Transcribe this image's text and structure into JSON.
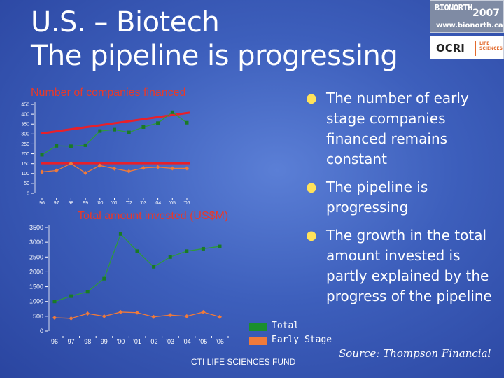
{
  "slide": {
    "title_line1": "U.S. – Biotech",
    "title_line2": "The pipeline is progressing"
  },
  "logos": {
    "bionorth_name": "BIONORTH",
    "bionorth_year": "2007",
    "bionorth_url": "www.bionorth.ca",
    "ocri_name": "OCRI",
    "ocri_sub": "LIFE SCIENCES"
  },
  "bullets": [
    "The number of early stage companies financed remains constant",
    "The pipeline is progressing",
    "The growth in the total amount invested is partly explained by the progress of the pipeline"
  ],
  "legend": [
    {
      "label": "Total",
      "color": "#1a8f2c"
    },
    {
      "label": "Early Stage",
      "color": "#f07a3a"
    }
  ],
  "footer": {
    "fund": "CTI LIFE SCIENCES FUND",
    "source": "Source: Thompson Financial"
  },
  "colors": {
    "total_series": "#2e9a3a",
    "early_series": "#f07a3a",
    "trend_line": "#e8202a",
    "title_red": "#e8392a"
  },
  "chart_data": [
    {
      "type": "line",
      "title": "Number of companies financed",
      "categories": [
        "96",
        "97",
        "98",
        "99",
        "'00",
        "'01",
        "'02",
        "'03",
        "'04",
        "'05",
        "'06"
      ],
      "yticks": [
        "0",
        "50",
        "100",
        "150",
        "200",
        "250",
        "300",
        "350",
        "400",
        "450"
      ],
      "ylim": [
        0,
        450
      ],
      "series": [
        {
          "name": "Total",
          "values": [
            195,
            240,
            238,
            243,
            315,
            322,
            308,
            335,
            355,
            410,
            357
          ]
        },
        {
          "name": "Early Stage",
          "values": [
            108,
            115,
            150,
            103,
            140,
            125,
            111,
            128,
            132,
            126,
            126
          ]
        }
      ],
      "trendlines": [
        {
          "series": "Total",
          "start": 302,
          "end": 408
        },
        {
          "series": "Early Stage",
          "start": 152,
          "end": 152
        }
      ]
    },
    {
      "type": "line",
      "title": "Total amount invested (US$M)",
      "categories": [
        "96",
        "97",
        "98",
        "99",
        "'00",
        "'01",
        "'02",
        "'03",
        "'04",
        "'05",
        "'06"
      ],
      "yticks": [
        "0",
        "500",
        "1000",
        "1500",
        "2000",
        "2500",
        "3000",
        "3500"
      ],
      "ylim": [
        0,
        3500
      ],
      "series": [
        {
          "name": "Total",
          "values": [
            1000,
            1180,
            1330,
            1770,
            3280,
            2700,
            2170,
            2500,
            2700,
            2780,
            2860
          ]
        },
        {
          "name": "Early Stage",
          "values": [
            450,
            430,
            590,
            500,
            640,
            620,
            480,
            540,
            500,
            640,
            480
          ]
        }
      ]
    }
  ]
}
